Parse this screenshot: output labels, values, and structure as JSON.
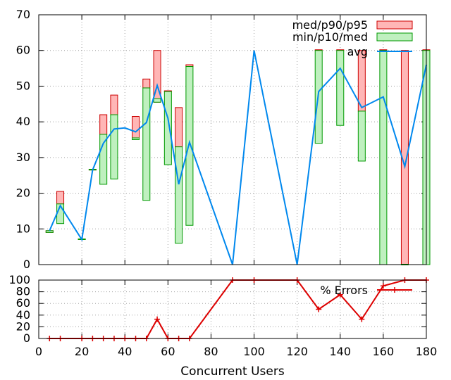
{
  "chart_data": [
    {
      "type": "box-line",
      "title": "",
      "xlabel": "",
      "ylabel": "",
      "xlim": [
        0,
        180
      ],
      "ylim": [
        0,
        70
      ],
      "grid": true,
      "legend_position": "top-right",
      "x_ticks": [
        "0",
        "20",
        "40",
        "60",
        "80",
        "100",
        "120",
        "140",
        "160",
        "180"
      ],
      "y_ticks": [
        "0",
        "10",
        "20",
        "30",
        "40",
        "50",
        "60",
        "70"
      ],
      "colors": {
        "upper_box": "#ffb6b6",
        "upper_box_edge": "#cc0000",
        "lower_box": "#bff0bf",
        "lower_box_edge": "#009900",
        "avg": "#0088ee"
      },
      "legend": [
        "med/p90/p95",
        "min/p10/med",
        "avg"
      ],
      "series": [
        {
          "name": "med/p90/p95",
          "points": [
            {
              "x": 5,
              "low": 9,
              "high": 9.5
            },
            {
              "x": 10,
              "low": 17,
              "high": 20.5
            },
            {
              "x": 20,
              "low": 7,
              "high": 7.2
            },
            {
              "x": 25,
              "low": 26.5,
              "high": 26.7
            },
            {
              "x": 30,
              "low": 36.5,
              "high": 42
            },
            {
              "x": 35,
              "low": 42,
              "high": 47.5
            },
            {
              "x": 45,
              "low": 35,
              "high": 41.5
            },
            {
              "x": 50,
              "low": 49.5,
              "high": 52
            },
            {
              "x": 55,
              "low": 45.5,
              "high": 60
            },
            {
              "x": 60,
              "low": 48.5,
              "high": 48.7
            },
            {
              "x": 65,
              "low": 33,
              "high": 44
            },
            {
              "x": 70,
              "low": 55.5,
              "high": 56
            },
            {
              "x": 130,
              "low": 60,
              "high": 60.2
            },
            {
              "x": 140,
              "low": 60,
              "high": 60.2
            },
            {
              "x": 150,
              "low": 43,
              "high": 60
            },
            {
              "x": 160,
              "low": 60,
              "high": 60.2
            },
            {
              "x": 170,
              "low": 0,
              "high": 60
            },
            {
              "x": 180,
              "low": 60,
              "high": 60.2
            }
          ]
        },
        {
          "name": "min/p10/med",
          "points": [
            {
              "x": 5,
              "low": 9,
              "high": 9.5
            },
            {
              "x": 10,
              "low": 11.5,
              "high": 17
            },
            {
              "x": 20,
              "low": 7,
              "high": 7.2
            },
            {
              "x": 25,
              "low": 26.5,
              "high": 26.7
            },
            {
              "x": 30,
              "low": 22.5,
              "high": 36.5
            },
            {
              "x": 35,
              "low": 24,
              "high": 42
            },
            {
              "x": 45,
              "low": 35,
              "high": 35.5
            },
            {
              "x": 50,
              "low": 18,
              "high": 49.5
            },
            {
              "x": 55,
              "low": 45.5,
              "high": 46.5
            },
            {
              "x": 60,
              "low": 28,
              "high": 48.5
            },
            {
              "x": 65,
              "low": 6,
              "high": 33
            },
            {
              "x": 70,
              "low": 11,
              "high": 55.5
            },
            {
              "x": 130,
              "low": 34,
              "high": 60
            },
            {
              "x": 140,
              "low": 39,
              "high": 60
            },
            {
              "x": 150,
              "low": 29,
              "high": 43
            },
            {
              "x": 160,
              "low": 0,
              "high": 60
            },
            {
              "x": 170,
              "low": 0,
              "high": 0.1
            },
            {
              "x": 180,
              "low": 0,
              "high": 60
            }
          ]
        },
        {
          "name": "avg",
          "points": [
            {
              "x": 5,
              "y": 9.5
            },
            {
              "x": 10,
              "y": 16.5
            },
            {
              "x": 20,
              "y": 7
            },
            {
              "x": 25,
              "y": 26.5
            },
            {
              "x": 30,
              "y": 34
            },
            {
              "x": 35,
              "y": 38
            },
            {
              "x": 40,
              "y": 38.3
            },
            {
              "x": 45,
              "y": 37.2
            },
            {
              "x": 50,
              "y": 39.8
            },
            {
              "x": 55,
              "y": 50.2
            },
            {
              "x": 60,
              "y": 41
            },
            {
              "x": 65,
              "y": 22.5
            },
            {
              "x": 70,
              "y": 34.3
            },
            {
              "x": 90,
              "y": 0
            },
            {
              "x": 100,
              "y": 60
            },
            {
              "x": 120,
              "y": 0
            },
            {
              "x": 130,
              "y": 48.5
            },
            {
              "x": 140,
              "y": 55
            },
            {
              "x": 150,
              "y": 44
            },
            {
              "x": 160,
              "y": 47
            },
            {
              "x": 170,
              "y": 27.5
            },
            {
              "x": 180,
              "y": 56
            }
          ]
        }
      ]
    },
    {
      "type": "line",
      "title": "",
      "xlabel": "Concurrent Users",
      "ylabel": "",
      "xlim": [
        0,
        180
      ],
      "ylim": [
        0,
        100
      ],
      "grid": true,
      "legend_position": "top-right",
      "x_ticks": [
        "0",
        "20",
        "40",
        "60",
        "80",
        "100",
        "120",
        "140",
        "160",
        "180"
      ],
      "y_ticks": [
        "0",
        "20",
        "40",
        "60",
        "80",
        "100"
      ],
      "colors": {
        "errors": "#dd0000"
      },
      "legend": [
        "% Errors"
      ],
      "series": [
        {
          "name": "% Errors",
          "x": [
            5,
            10,
            20,
            25,
            30,
            35,
            40,
            45,
            50,
            55,
            60,
            65,
            70,
            90,
            100,
            120,
            130,
            140,
            150,
            160,
            170,
            180
          ],
          "values": [
            0,
            0,
            0,
            0,
            0,
            0,
            0,
            0,
            0,
            33,
            0,
            0,
            0,
            100,
            100,
            100,
            50,
            75,
            33,
            90,
            100,
            100
          ]
        }
      ]
    }
  ]
}
